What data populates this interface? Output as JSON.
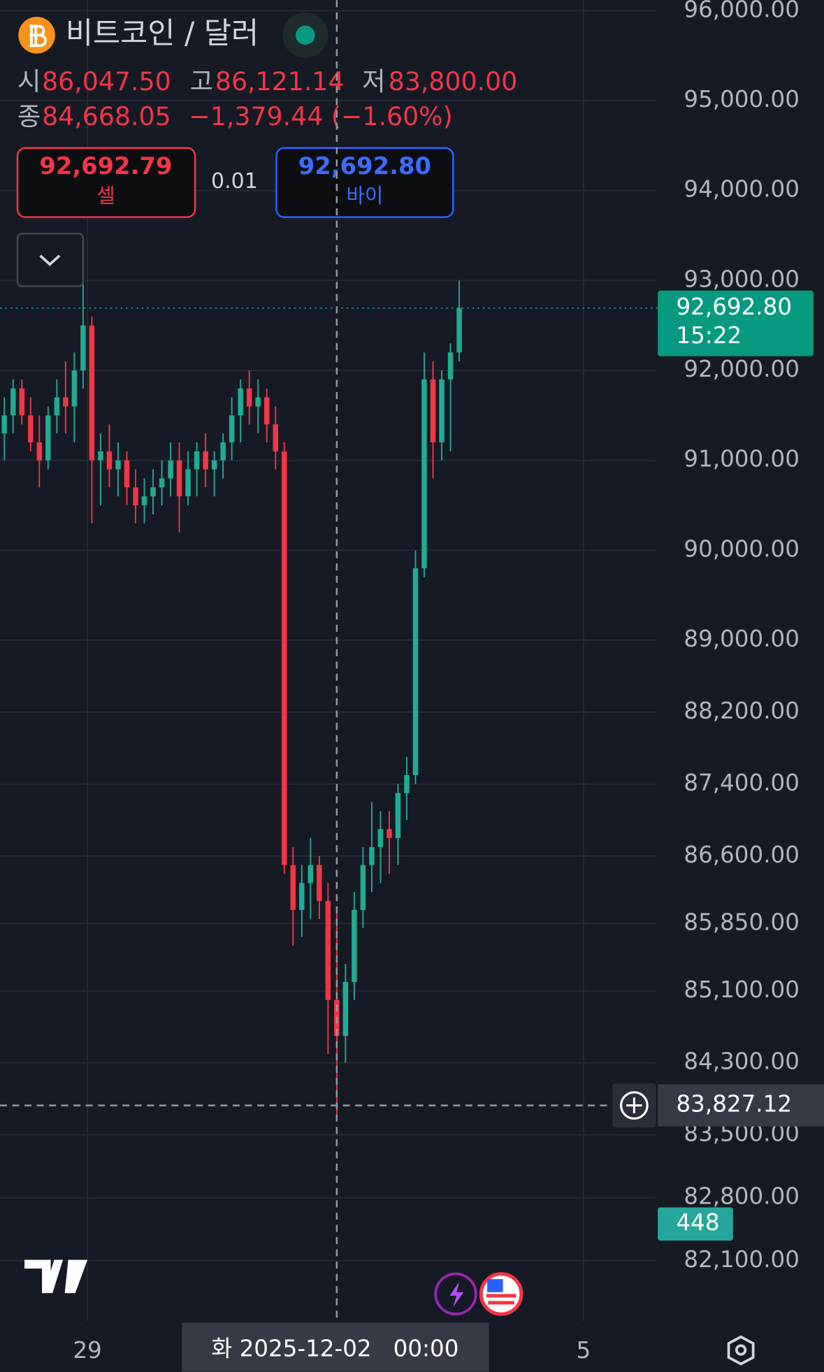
{
  "header": {
    "title": "비트코인 / 달러",
    "open_label": "시",
    "open": "86,047.50",
    "high_label": "고",
    "high": "86,121.14",
    "low_label": "저",
    "low": "83,800.00",
    "close_label": "종",
    "close": "84,668.05",
    "change": "−1,379.44 (−1.60%)"
  },
  "trade": {
    "sell_price": "92,692.79",
    "sell_label": "셀",
    "spread": "0.01",
    "buy_price": "92,692.80",
    "buy_label": "바이"
  },
  "chart_data": {
    "type": "candlestick",
    "up_color": "#22ab94",
    "down_color": "#f23645",
    "open": [
      91300,
      91500,
      91800,
      91500,
      91200,
      91000,
      91500,
      91700,
      91600,
      92000,
      92500,
      91000,
      91100,
      90900,
      91000,
      90700,
      90500,
      90600,
      90700,
      90800,
      91000,
      90600,
      90900,
      91100,
      90900,
      91000,
      91200,
      91500,
      91800,
      91600,
      91700,
      91400,
      91100,
      86500,
      86000,
      86300,
      86500,
      86100,
      85000,
      84600,
      85200,
      86000,
      86500,
      86700,
      86900,
      86800,
      87300,
      87500,
      89800,
      91900,
      91200,
      91900,
      92200
    ],
    "high": [
      91700,
      91900,
      91900,
      91700,
      91500,
      91600,
      91900,
      92100,
      92200,
      93100,
      92600,
      91300,
      91400,
      91200,
      91100,
      90900,
      90800,
      90900,
      91000,
      91200,
      91200,
      91100,
      91200,
      91300,
      91100,
      91300,
      91700,
      91900,
      92000,
      91900,
      91800,
      91600,
      91200,
      86700,
      86500,
      86800,
      86600,
      86300,
      86000,
      85400,
      86200,
      86700,
      87200,
      87100,
      87100,
      87400,
      87700,
      90000,
      92200,
      92100,
      92000,
      92300,
      93000
    ],
    "low": [
      91000,
      91300,
      91400,
      91100,
      90700,
      90900,
      91300,
      91300,
      91200,
      91800,
      90300,
      90500,
      90700,
      90600,
      90500,
      90300,
      90300,
      90400,
      90500,
      90600,
      90200,
      90500,
      90600,
      90700,
      90600,
      90800,
      91000,
      91200,
      91400,
      91300,
      91200,
      90900,
      86400,
      85600,
      85700,
      85900,
      85900,
      84400,
      83700,
      84300,
      85000,
      85800,
      86200,
      86300,
      86400,
      86500,
      87000,
      87400,
      89700,
      90800,
      91000,
      91100,
      92100
    ],
    "close": [
      91500,
      91800,
      91500,
      91200,
      91000,
      91500,
      91700,
      91600,
      92000,
      92500,
      91000,
      91100,
      90900,
      91000,
      90700,
      90500,
      90600,
      90700,
      90800,
      91000,
      90600,
      90900,
      91100,
      90900,
      91000,
      91200,
      91500,
      91800,
      91600,
      91700,
      91400,
      91100,
      86500,
      86000,
      86300,
      86500,
      86100,
      85000,
      84600,
      85200,
      86000,
      86500,
      86700,
      86900,
      86800,
      87300,
      87500,
      89800,
      91900,
      91200,
      91900,
      92200,
      92692.8
    ],
    "xlim": [
      -0.5,
      74.5
    ],
    "xticks": [
      {
        "value": 9.5,
        "label": "29"
      },
      {
        "value": 66.2,
        "label": "5"
      }
    ],
    "ylim": [
      81429,
      96117
    ],
    "yticks": [
      {
        "value": 96000,
        "label": "96,000.00"
      },
      {
        "value": 95000,
        "label": "95,000.00"
      },
      {
        "value": 94000,
        "label": "94,000.00"
      },
      {
        "value": 93000,
        "label": "93,000.00"
      },
      {
        "value": 92000,
        "label": "92,000.00"
      },
      {
        "value": 91000,
        "label": "91,000.00"
      },
      {
        "value": 90000,
        "label": "90,000.00"
      },
      {
        "value": 89000,
        "label": "89,000.00"
      },
      {
        "value": 88200,
        "label": "88,200.00"
      },
      {
        "value": 87400,
        "label": "87,400.00"
      },
      {
        "value": 86600,
        "label": "86,600.00"
      },
      {
        "value": 85850,
        "label": "85,850.00"
      },
      {
        "value": 85100,
        "label": "85,100.00"
      },
      {
        "value": 84300,
        "label": "84,300.00"
      },
      {
        "value": 83500,
        "label": "83,500.00"
      },
      {
        "value": 82800,
        "label": "82,800.00"
      },
      {
        "value": 82100,
        "label": "82,100.00"
      }
    ],
    "grid": true,
    "last_price": {
      "value": 92692.8,
      "label": "92,692.80"
    },
    "countdown": "15:22",
    "crosshair_price": {
      "value": 83827.12,
      "label": "83,827.12"
    },
    "crosshair_time": {
      "value": 38,
      "label": "화 2025-12-02   00:00"
    },
    "volume_last": 448
  }
}
